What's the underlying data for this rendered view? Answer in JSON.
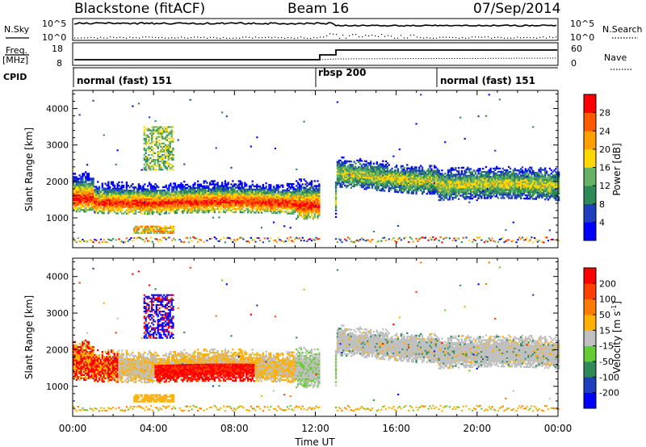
{
  "header": {
    "station": "Blackstone (fitACF)",
    "beam": "Beam 16",
    "date": "07/Sep/2014"
  },
  "noise_panel": {
    "left_label": "N.Sky",
    "left_ticks": [
      "10^5",
      "10^0"
    ],
    "right_ticks": [
      "10^5",
      "10^0"
    ],
    "right_label": "N.Search"
  },
  "freq_panel": {
    "left_label_top": "Freq.",
    "left_label_bottom": "[MHz]",
    "left_ticks": [
      "18",
      "8"
    ],
    "right_ticks": [
      "60",
      "0"
    ],
    "right_label": "Nave"
  },
  "cpid_panel": {
    "label": "CPID",
    "segments": [
      {
        "label": "normal (fast) 151",
        "start_hour": 0
      },
      {
        "label": "rbsp 200",
        "start_hour": 12
      },
      {
        "label": "normal (fast) 151",
        "start_hour": 18
      }
    ]
  },
  "chart_data": [
    {
      "type": "heatmap",
      "name": "Power",
      "ylabel": "Slant Range [km]",
      "y_ticks": [
        1000,
        2000,
        3000,
        4000
      ],
      "ylim": [
        180,
        4500
      ],
      "x_ticks": [
        "00:00",
        "04:00",
        "08:00",
        "12:00",
        "16:00",
        "20:00",
        "00:00"
      ],
      "xlim_hours": [
        0,
        24
      ],
      "colorbar": {
        "label": "Power [dB]",
        "ticks": [
          "4",
          "8",
          "12",
          "16",
          "20",
          "24",
          "28"
        ],
        "min": 0,
        "max": 32,
        "colors": [
          "#0000ff",
          "#1f3fbf",
          "#2e8b57",
          "#66b266",
          "#ffd700",
          "#ff9f00",
          "#ff5a00",
          "#ff0000"
        ]
      }
    },
    {
      "type": "heatmap",
      "name": "Velocity",
      "ylabel": "Slant Range [km]",
      "y_ticks": [
        1000,
        2000,
        3000,
        4000
      ],
      "ylim": [
        180,
        4500
      ],
      "x_ticks": [
        "00:00",
        "04:00",
        "08:00",
        "12:00",
        "16:00",
        "20:00",
        "00:00"
      ],
      "xlim_hours": [
        0,
        24
      ],
      "xlabel": "Time UT",
      "colorbar": {
        "label": "Velocity [m s",
        "label_sup": "-1",
        "label_end": "]",
        "ticks": [
          "200",
          "100",
          "50",
          "15",
          "-15",
          "-50",
          "-100",
          "-200"
        ],
        "colors": [
          "#0000ff",
          "#1f3fbf",
          "#2e8b57",
          "#66cc33",
          "#c0c0c0",
          "#ffb000",
          "#ff7a00",
          "#ff4000",
          "#ff0000"
        ]
      }
    }
  ]
}
